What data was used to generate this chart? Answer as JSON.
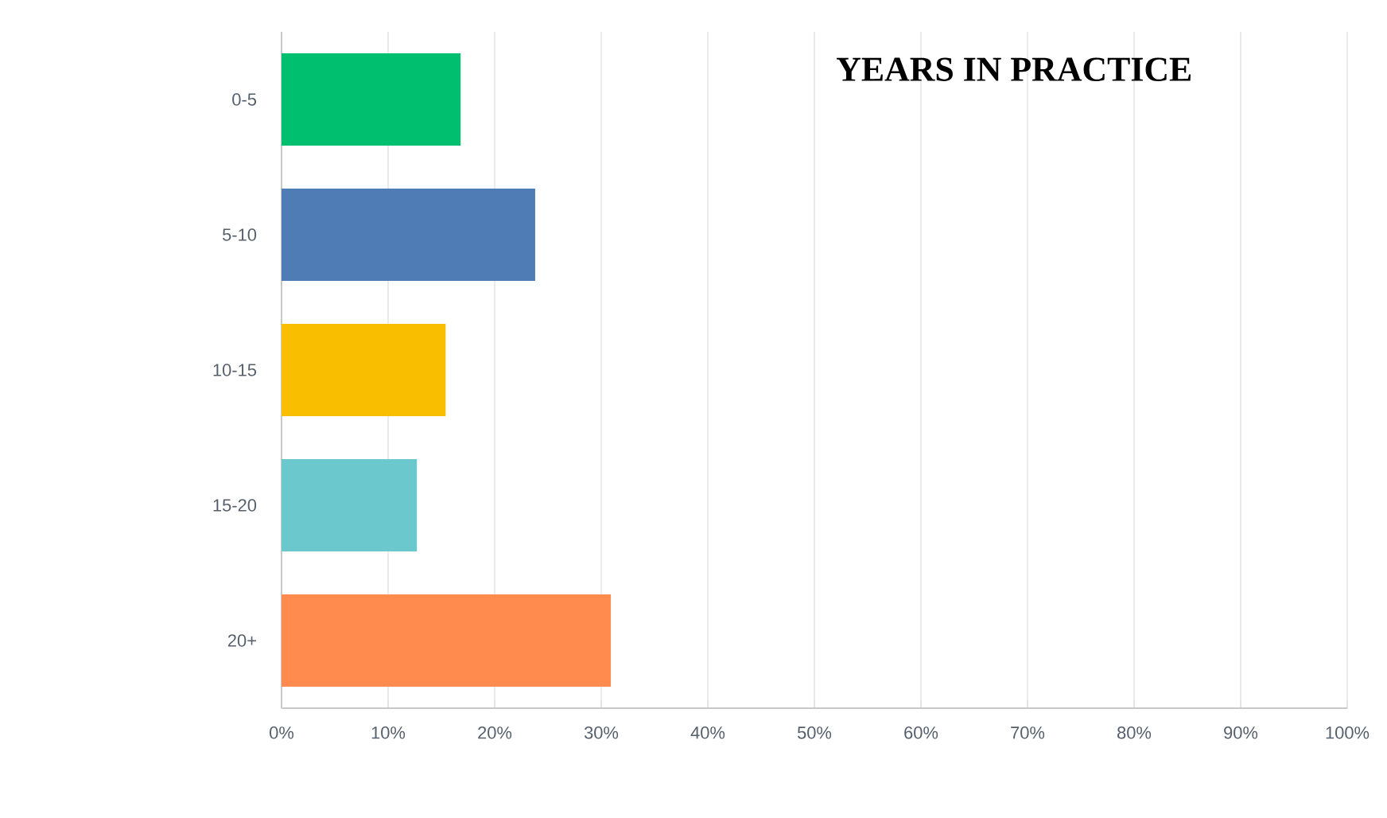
{
  "chart_data": {
    "type": "bar",
    "orientation": "horizontal",
    "title": "YEARS IN PRACTICE",
    "categories": [
      "0-5",
      "5-10",
      "10-15",
      "15-20",
      "20+"
    ],
    "values": [
      16.8,
      23.8,
      15.4,
      12.7,
      30.9
    ],
    "colors": [
      "#00bf6f",
      "#507cb6",
      "#f9be00",
      "#6bc8cd",
      "#ff8b4f"
    ],
    "xlim": [
      0,
      100
    ],
    "xticks": [
      {
        "value": 0,
        "label": "0%"
      },
      {
        "value": 10,
        "label": "10%"
      },
      {
        "value": 20,
        "label": "20%"
      },
      {
        "value": 30,
        "label": "30%"
      },
      {
        "value": 40,
        "label": "40%"
      },
      {
        "value": 50,
        "label": "50%"
      },
      {
        "value": 60,
        "label": "60%"
      },
      {
        "value": 70,
        "label": "70%"
      },
      {
        "value": 80,
        "label": "80%"
      },
      {
        "value": 90,
        "label": "90%"
      },
      {
        "value": 100,
        "label": "100%"
      }
    ],
    "grid": "x"
  }
}
